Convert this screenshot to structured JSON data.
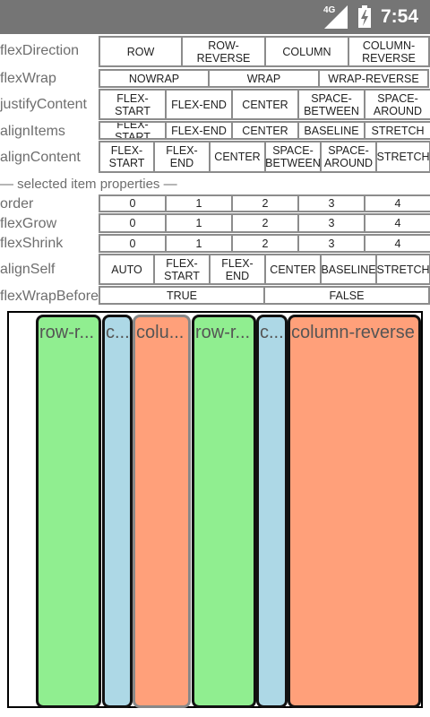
{
  "status": {
    "network": "4G",
    "time": "7:54"
  },
  "rows": [
    {
      "label": "flexDirection",
      "options": [
        "ROW",
        "ROW-REVERSE",
        "COLUMN",
        "COLUMN-REVERSE"
      ]
    },
    {
      "label": "flexWrap",
      "options": [
        "NOWRAP",
        "WRAP",
        "WRAP-REVERSE"
      ]
    },
    {
      "label": "justifyContent",
      "options": [
        "FLEX-START",
        "FLEX-END",
        "CENTER",
        "SPACE-BETWEEN",
        "SPACE-AROUND"
      ]
    },
    {
      "label": "alignItems",
      "options": [
        "FLEX-START",
        "FLEX-END",
        "CENTER",
        "BASELINE",
        "STRETCH"
      ]
    },
    {
      "label": "alignContent",
      "options": [
        "FLEX-START",
        "FLEX-END",
        "CENTER",
        "SPACE-BETWEEN",
        "SPACE-AROUND",
        "STRETCH"
      ]
    }
  ],
  "section_title": "— selected item properties —",
  "item_rows": [
    {
      "label": "order",
      "options": [
        "0",
        "1",
        "2",
        "3",
        "4"
      ]
    },
    {
      "label": "flexGrow",
      "options": [
        "0",
        "1",
        "2",
        "3",
        "4"
      ]
    },
    {
      "label": "flexShrink",
      "options": [
        "0",
        "1",
        "2",
        "3",
        "4"
      ]
    },
    {
      "label": "alignSelf",
      "options": [
        "AUTO",
        "FLEX-START",
        "FLEX-END",
        "CENTER",
        "BASELINE",
        "STRETCH"
      ]
    },
    {
      "label": "flexWrapBefore",
      "options": [
        "TRUE",
        "FALSE"
      ]
    }
  ],
  "items": [
    {
      "label": "row-reverse",
      "short": "row-r...",
      "color": "#90ee90",
      "border": "#111111"
    },
    {
      "label": "column",
      "short": "c...",
      "color": "#add8e6",
      "border": "#111111"
    },
    {
      "label": "column",
      "short": "colu...",
      "color": "#ffa07a",
      "border": "#888888"
    },
    {
      "label": "row-reverse",
      "short": "row-r...",
      "color": "#90ee90",
      "border": "#111111"
    },
    {
      "label": "column",
      "short": "c...",
      "color": "#add8e6",
      "border": "#111111"
    },
    {
      "label": "column-reverse",
      "short": "column-reverse",
      "color": "#ffa07a",
      "border": "#111111"
    }
  ]
}
